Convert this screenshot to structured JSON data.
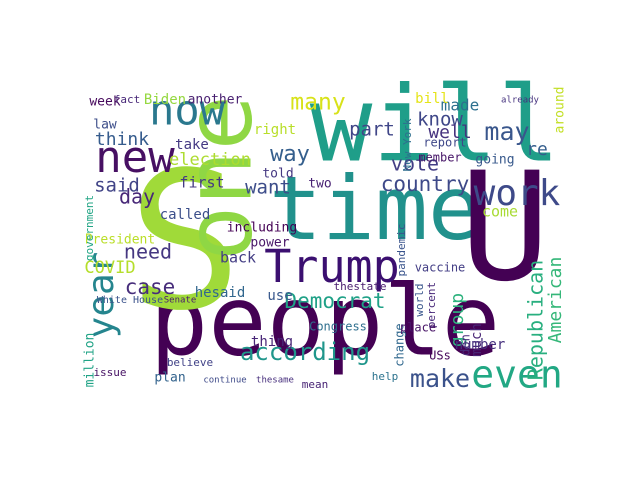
{
  "words": [
    {
      "text": "will",
      "color": "#1f9e89"
    },
    {
      "text": "people",
      "color": "#440154"
    },
    {
      "text": "S",
      "color": "#a0da39"
    },
    {
      "text": "one",
      "color": "#8fd744"
    },
    {
      "text": "time",
      "color": "#21918c"
    },
    {
      "text": "U",
      "color": "#440154"
    },
    {
      "text": "Trump",
      "color": "#3b0f70"
    },
    {
      "text": "new",
      "color": "#471063"
    },
    {
      "text": "now",
      "color": "#2a788e"
    },
    {
      "text": "year",
      "color": "#25858e"
    },
    {
      "text": "work",
      "color": "#3e4a89"
    },
    {
      "text": "even",
      "color": "#22a884"
    },
    {
      "text": "according",
      "color": "#1f968b"
    },
    {
      "text": "Democrat",
      "color": "#1fa187"
    },
    {
      "text": "country",
      "color": "#3e4989"
    },
    {
      "text": "vote",
      "color": "#433e85"
    },
    {
      "text": "make",
      "color": "#3b528b"
    },
    {
      "text": "may",
      "color": "#39568c"
    },
    {
      "text": "day",
      "color": "#482878"
    },
    {
      "text": "need",
      "color": "#453781"
    },
    {
      "text": "said",
      "color": "#414487"
    },
    {
      "text": "case",
      "color": "#472d7b"
    },
    {
      "text": "COVID",
      "color": "#b5de2b"
    },
    {
      "text": "many",
      "color": "#d8e219"
    },
    {
      "text": "part",
      "color": "#404688"
    },
    {
      "text": "know",
      "color": "#3f4788"
    },
    {
      "text": "well",
      "color": "#46327e"
    },
    {
      "text": "made",
      "color": "#2d708e"
    },
    {
      "text": "Republican",
      "color": "#29af7f"
    },
    {
      "text": "American",
      "color": "#35b779"
    },
    {
      "text": "group",
      "color": "#2db27d"
    },
    {
      "text": "much",
      "color": "#482475"
    },
    {
      "text": "don",
      "color": "#472c7a"
    },
    {
      "text": "election",
      "color": "#addc30"
    },
    {
      "text": "way",
      "color": "#355f8d"
    },
    {
      "text": "think",
      "color": "#365c8d"
    },
    {
      "text": "want",
      "color": "#3d4d8a"
    },
    {
      "text": "first",
      "color": "#443a83"
    },
    {
      "text": "Biden",
      "color": "#95d840"
    },
    {
      "text": "another",
      "color": "#481f70"
    },
    {
      "text": "week",
      "color": "#46085c"
    },
    {
      "text": "right",
      "color": "#b8de29"
    },
    {
      "text": "including",
      "color": "#440154"
    },
    {
      "text": "called",
      "color": "#3c4f8a"
    },
    {
      "text": "power",
      "color": "#481668"
    },
    {
      "text": "back",
      "color": "#433d84"
    },
    {
      "text": "hesaid",
      "color": "#31678e"
    },
    {
      "text": "use",
      "color": "#38588c"
    },
    {
      "text": "told",
      "color": "#453882"
    },
    {
      "text": "thing",
      "color": "#482677"
    },
    {
      "text": "Congress",
      "color": "#2e6f8e"
    },
    {
      "text": "number",
      "color": "#46307e"
    },
    {
      "text": "million",
      "color": "#20a386"
    },
    {
      "text": "President",
      "color": "#bade28"
    },
    {
      "text": "government",
      "color": "#21a585"
    },
    {
      "text": "plan",
      "color": "#33638d"
    },
    {
      "text": "thestate",
      "color": "#481b6d"
    },
    {
      "text": "pandemic",
      "color": "#3a548c"
    },
    {
      "text": "two",
      "color": "#482173"
    },
    {
      "text": "vaccine",
      "color": "#433e85"
    },
    {
      "text": "come",
      "color": "#a8db34"
    },
    {
      "text": "re",
      "color": "#355e8d"
    },
    {
      "text": "going",
      "color": "#38598c"
    },
    {
      "text": "member",
      "color": "#481769"
    },
    {
      "text": "report",
      "color": "#3f4889"
    },
    {
      "text": "bill",
      "color": "#e5e419"
    },
    {
      "text": "law",
      "color": "#3d4e8a"
    },
    {
      "text": "take",
      "color": "#443983"
    },
    {
      "text": "fact",
      "color": "#482878"
    },
    {
      "text": "White House",
      "color": "#3b528b"
    },
    {
      "text": "Senate",
      "color": "#481a6c"
    },
    {
      "text": "New York",
      "color": "#2e6e8e"
    },
    {
      "text": "percent",
      "color": "#482979"
    },
    {
      "text": "world",
      "color": "#39568c"
    },
    {
      "text": "change",
      "color": "#31688e"
    },
    {
      "text": "place",
      "color": "#481467"
    },
    {
      "text": "USs",
      "color": "#450559"
    },
    {
      "text": "help",
      "color": "#2c738e"
    },
    {
      "text": "issue",
      "color": "#471365"
    },
    {
      "text": "believe",
      "color": "#414287"
    },
    {
      "text": "mean",
      "color": "#482475"
    },
    {
      "text": "continue",
      "color": "#3e4a89"
    },
    {
      "text": "thesame",
      "color": "#472f7d"
    },
    {
      "text": "around",
      "color": "#c2df23"
    },
    {
      "text": "already",
      "color": "#46337f"
    }
  ]
}
